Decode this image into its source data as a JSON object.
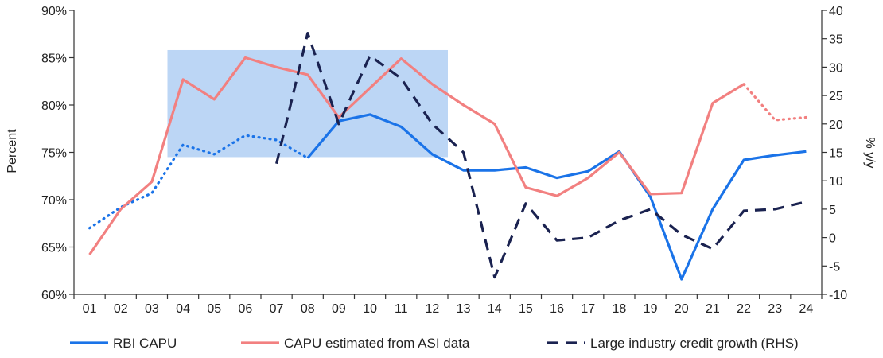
{
  "chart_data": {
    "type": "line",
    "categories": [
      "01",
      "02",
      "03",
      "04",
      "05",
      "06",
      "07",
      "08",
      "09",
      "10",
      "11",
      "12",
      "13",
      "14",
      "15",
      "16",
      "17",
      "18",
      "19",
      "20",
      "21",
      "22",
      "23",
      "24"
    ],
    "y_left": {
      "label": "Percent",
      "range": [
        60,
        90
      ],
      "ticks": [
        60,
        65,
        70,
        75,
        80,
        85,
        90
      ],
      "tick_labels": [
        "60%",
        "65%",
        "70%",
        "75%",
        "80%",
        "85%",
        "90%"
      ]
    },
    "y_right": {
      "label": "% y/y",
      "range": [
        -10,
        40
      ],
      "ticks": [
        -10,
        -5,
        0,
        5,
        10,
        15,
        20,
        25,
        30,
        35,
        40
      ],
      "tick_labels": [
        "-10",
        "-5",
        "0",
        "5",
        "10",
        "15",
        "20",
        "25",
        "30",
        "35",
        "40"
      ]
    },
    "shaded_region": {
      "from_category": "04",
      "to_category": "12",
      "y_range": [
        74.5,
        85.8
      ],
      "color": "#bcd6f5"
    },
    "series": [
      {
        "name": "RBI CAPU",
        "axis": "left",
        "color": "#1a73e8",
        "values": [
          67.0,
          69.2,
          70.7,
          75.8,
          74.8,
          76.8,
          76.3,
          74.4,
          78.3,
          79.0,
          77.7,
          74.8,
          73.1,
          73.1,
          73.4,
          72.3,
          73.0,
          75.1,
          70.3,
          61.6,
          69.0,
          74.2,
          74.7,
          75.1
        ],
        "dotted_through_index": 7
      },
      {
        "name": "CAPU estimated from ASI data",
        "axis": "left",
        "color": "#f28080",
        "values": [
          64.2,
          69.0,
          71.9,
          82.7,
          80.6,
          85.0,
          84.0,
          83.2,
          78.7,
          81.8,
          84.9,
          82.2,
          80.0,
          78.0,
          71.3,
          70.4,
          72.3,
          75.0,
          70.6,
          70.7,
          80.2,
          82.2,
          78.4,
          78.7
        ],
        "dotted_from_index": 21
      },
      {
        "name": "Large industry credit growth (RHS)",
        "axis": "right",
        "color": "#1a2250",
        "values": [
          null,
          null,
          null,
          null,
          null,
          null,
          13.0,
          36.0,
          20.0,
          32.0,
          28.0,
          20.0,
          15.0,
          -7.0,
          6.0,
          -0.5,
          0.0,
          3.0,
          5.0,
          0.5,
          -2.0,
          4.7,
          5.0,
          6.3
        ]
      }
    ],
    "legend_position": "bottom"
  }
}
